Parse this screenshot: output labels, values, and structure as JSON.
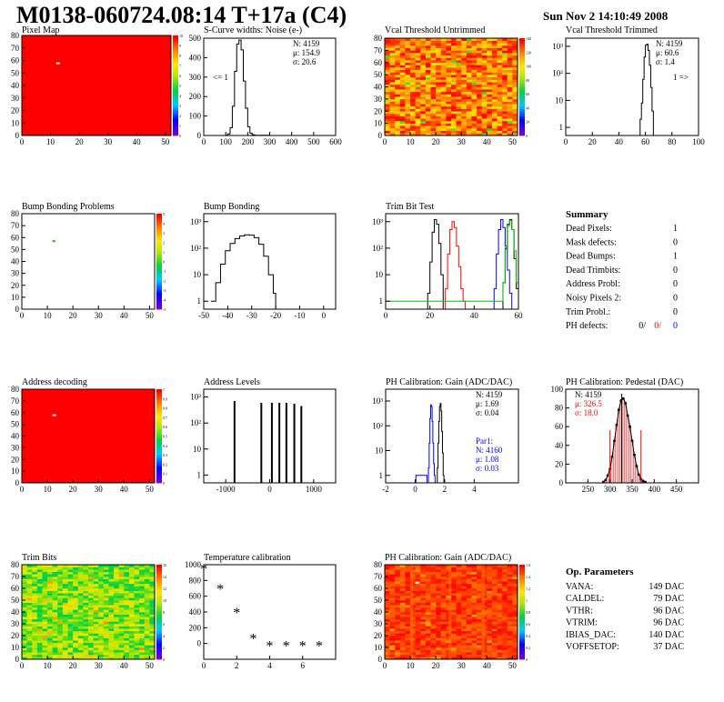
{
  "header": {
    "title": "M0138-060724.08:14 T+17a (C4)",
    "timestamp": "Sun Nov  2 14:10:49 2008"
  },
  "colors": {
    "red": "#ff0000",
    "blue": "#0000ff",
    "green": "#00c000",
    "black": "#000000"
  },
  "chart_data": [
    {
      "id": "pixel-map",
      "type": "heatmap",
      "title": "Pixel Map",
      "xlim": [
        0,
        52
      ],
      "ylim": [
        0,
        80
      ],
      "xticks": [
        0,
        10,
        20,
        30,
        40,
        50
      ],
      "yticks": [
        0,
        10,
        20,
        30,
        40,
        50,
        60,
        70,
        80
      ],
      "zlim": [
        0,
        10
      ],
      "zticks": [
        "0",
        "1",
        "2",
        "3",
        "4",
        "5",
        "6",
        "7",
        "8",
        "9",
        "10"
      ],
      "fill": "uniform",
      "value": 10,
      "hot_pixels": [
        [
          12,
          57
        ]
      ]
    },
    {
      "id": "scurve-widths",
      "type": "line",
      "title": "S-Curve widths: Noise (e-)",
      "xlim": [
        0,
        600
      ],
      "ylim": [
        0,
        500
      ],
      "xticks": [
        0,
        100,
        200,
        300,
        400,
        500,
        600
      ],
      "yticks": [
        0,
        100,
        200,
        300,
        400,
        500
      ],
      "stats": [
        "N: 4159",
        "μ: 154.9",
        "σ: 20.6"
      ],
      "note": "<= 1",
      "series": [
        {
          "color": "#000000",
          "x": [
            90,
            100,
            110,
            120,
            130,
            140,
            150,
            160,
            170,
            180,
            190,
            200,
            210,
            220,
            230,
            240,
            250,
            300
          ],
          "y": [
            0,
            2,
            8,
            40,
            150,
            330,
            470,
            490,
            440,
            280,
            140,
            45,
            12,
            4,
            2,
            0,
            1,
            0
          ]
        }
      ]
    },
    {
      "id": "vcal-untrimmed",
      "type": "heatmap",
      "title": "Vcal Threshold Untrimmed",
      "xlim": [
        0,
        52
      ],
      "ylim": [
        0,
        80
      ],
      "xticks": [
        0,
        10,
        20,
        30,
        40,
        50
      ],
      "yticks": [
        0,
        10,
        20,
        30,
        40,
        50,
        60,
        70,
        80
      ],
      "zlim": [
        0,
        140
      ],
      "zticks": [
        "0",
        "20",
        "40",
        "60",
        "80",
        "100",
        "120",
        "140"
      ],
      "fill": "noisy-warm"
    },
    {
      "id": "vcal-trimmed",
      "type": "line",
      "title": "Vcal Threshold Trimmed",
      "xlim": [
        0,
        100
      ],
      "ylim": [
        0.5,
        2000
      ],
      "ylog": true,
      "xticks": [
        0,
        20,
        40,
        60,
        80,
        100
      ],
      "ytick_labels": [
        "1",
        "10",
        "10²",
        "10³"
      ],
      "yticks": [
        1,
        10,
        100,
        1000
      ],
      "stats": [
        "N: 4159",
        "μ: 60.6",
        "σ: 1.4"
      ],
      "note": "1 =>",
      "series": [
        {
          "color": "#000000",
          "x": [
            55,
            56,
            57,
            58,
            59,
            60,
            61,
            62,
            63,
            64,
            65,
            66
          ],
          "y": [
            0.5,
            2,
            8,
            60,
            400,
            1100,
            1200,
            700,
            200,
            30,
            4,
            0.5
          ]
        }
      ]
    },
    {
      "id": "bump-bonding-problems",
      "type": "heatmap",
      "title": "Bump Bonding Problems",
      "xlim": [
        0,
        52
      ],
      "ylim": [
        0,
        80
      ],
      "xticks": [
        0,
        10,
        20,
        30,
        40,
        50
      ],
      "yticks": [
        0,
        10,
        20,
        30,
        40,
        50,
        60,
        70,
        80
      ],
      "zlim": [
        -5,
        5
      ],
      "zticks": [
        "-5",
        "-4",
        "-3",
        "-2",
        "-1",
        "0",
        "1",
        "2",
        "3",
        "4",
        "5"
      ],
      "fill": "empty",
      "marks": [
        [
          12,
          57
        ]
      ]
    },
    {
      "id": "bump-bonding",
      "type": "line",
      "title": "Bump Bonding",
      "xlim": [
        -50,
        5
      ],
      "ylim": [
        0.5,
        2000
      ],
      "ylog": true,
      "xticks": [
        -50,
        -40,
        -30,
        -20,
        -10,
        0
      ],
      "ytick_labels": [
        "1",
        "10",
        "10²",
        "10³"
      ],
      "yticks": [
        1,
        10,
        100,
        1000
      ],
      "series": [
        {
          "color": "#000000",
          "x": [
            -47,
            -45,
            -43,
            -41,
            -39,
            -37,
            -35,
            -33,
            -31,
            -29,
            -27,
            -25,
            -23,
            -21,
            -20
          ],
          "y": [
            1,
            5,
            25,
            80,
            150,
            230,
            290,
            320,
            310,
            250,
            140,
            50,
            10,
            2,
            0.5
          ]
        }
      ]
    },
    {
      "id": "trim-bit-test",
      "type": "line",
      "title": "Trim Bit Test",
      "xlim": [
        0,
        60
      ],
      "ylim": [
        0.5,
        2000
      ],
      "ylog": true,
      "xticks": [
        0,
        20,
        40,
        60
      ],
      "ytick_labels": [
        "1",
        "10",
        "10²",
        "10³"
      ],
      "yticks": [
        1,
        10,
        100,
        1000
      ],
      "series": [
        {
          "color": "#000000",
          "x": [
            18,
            19,
            20,
            21,
            22,
            23,
            24,
            25,
            26,
            52,
            53,
            54,
            55,
            56,
            57,
            58,
            59,
            60
          ],
          "y": [
            0.5,
            2,
            30,
            400,
            1200,
            800,
            150,
            10,
            0.5,
            0.5,
            5,
            100,
            800,
            1200,
            500,
            40,
            3,
            0.5
          ]
        },
        {
          "color": "#ff0000",
          "x": [
            26,
            27,
            28,
            29,
            30,
            31,
            32,
            33,
            34,
            35,
            36
          ],
          "y": [
            0.5,
            3,
            60,
            500,
            1000,
            600,
            120,
            20,
            3,
            1,
            0.5
          ]
        },
        {
          "color": "#0000ff",
          "x": [
            48,
            49,
            50,
            51,
            52,
            53,
            54,
            55,
            56,
            57
          ],
          "y": [
            0.5,
            3,
            60,
            500,
            1200,
            600,
            120,
            15,
            2,
            0.5
          ]
        },
        {
          "color": "#00c000",
          "x": [
            0,
            48,
            50,
            52,
            53,
            54,
            55,
            56,
            57,
            58,
            59,
            60
          ],
          "y": [
            1,
            1,
            1,
            1,
            5,
            90,
            700,
            1100,
            500,
            80,
            5,
            1
          ]
        }
      ]
    },
    {
      "id": "summary",
      "type": "table",
      "title": "Summary",
      "rows": [
        {
          "label": "Dead Pixels:",
          "value": "1"
        },
        {
          "label": "Mask defects:",
          "value": "0"
        },
        {
          "label": "Dead Bumps:",
          "value": "1"
        },
        {
          "label": "Dead Trimbits:",
          "value": "0"
        },
        {
          "label": "Address Probl:",
          "value": "0"
        },
        {
          "label": "Noisy Pixels 2:",
          "value": "0"
        },
        {
          "label": "Trim Probl.:",
          "value": "0"
        }
      ],
      "ph_defects": {
        "label": "PH defects:",
        "values": [
          {
            "text": "0/",
            "color": "#000000"
          },
          {
            "text": "0/",
            "color": "#ff0000"
          },
          {
            "text": "0",
            "color": "#0000ff"
          }
        ]
      }
    },
    {
      "id": "address-decoding",
      "type": "heatmap",
      "title": "Address decoding",
      "xlim": [
        0,
        52
      ],
      "ylim": [
        0,
        80
      ],
      "xticks": [
        0,
        10,
        20,
        30,
        40,
        50
      ],
      "yticks": [
        0,
        10,
        20,
        30,
        40,
        50,
        60,
        70,
        80
      ],
      "zlim": [
        0,
        1
      ],
      "zticks": [
        "0",
        "0.1",
        "0.2",
        "0.3",
        "0.4",
        "0.5",
        "0.6",
        "0.7",
        "0.8",
        "0.9",
        "1"
      ],
      "fill": "uniform",
      "value": 1,
      "hot_pixels": [
        [
          12,
          57
        ]
      ]
    },
    {
      "id": "address-levels",
      "type": "bar",
      "title": "Address Levels",
      "xlim": [
        -1500,
        1500
      ],
      "ylim": [
        0.5,
        2000
      ],
      "ylog": true,
      "xticks": [
        -1000,
        0,
        1000
      ],
      "ytick_labels": [
        "1",
        "10",
        "10²",
        "10³"
      ],
      "yticks": [
        1,
        10,
        100,
        1000
      ],
      "x": [
        -800,
        -190,
        50,
        220,
        380,
        560,
        720
      ],
      "values": [
        700,
        600,
        600,
        600,
        600,
        550,
        450
      ]
    },
    {
      "id": "ph-gain",
      "type": "line",
      "title": "PH Calibration: Gain (ADC/DAC)",
      "xlim": [
        -2,
        7
      ],
      "ylim": [
        0.5,
        3000
      ],
      "ylog": true,
      "xticks": [
        -2,
        0,
        2,
        4
      ],
      "ytick_labels": [
        "1",
        "10",
        "10²",
        "10³"
      ],
      "yticks": [
        1,
        10,
        100,
        1000
      ],
      "stats": [
        "N: 4159",
        "μ: 1.69",
        "σ: 0.04"
      ],
      "stats2": [
        "Par1:",
        "N: 4160",
        "μ: 1.08",
        "σ: 0.03"
      ],
      "series": [
        {
          "color": "#000000",
          "x": [
            1.45,
            1.5,
            1.55,
            1.6,
            1.65,
            1.7,
            1.75,
            1.8,
            1.85,
            1.9,
            1.95
          ],
          "y": [
            0.5,
            2,
            20,
            150,
            600,
            800,
            400,
            60,
            8,
            1,
            0.5
          ]
        },
        {
          "color": "#0000ff",
          "x": [
            0,
            0.05,
            0.8,
            0.9,
            0.95,
            1.0,
            1.05,
            1.1,
            1.15,
            1.2,
            1.25,
            1.3,
            1.35
          ],
          "y": [
            0.5,
            1,
            0.5,
            2,
            20,
            200,
            700,
            600,
            150,
            20,
            3,
            1,
            0.5
          ]
        },
        {
          "color": "#0000ff",
          "x": [
            -2,
            7
          ],
          "y": [
            0.5,
            0.5
          ]
        }
      ]
    },
    {
      "id": "ph-pedestal",
      "type": "bar",
      "title": "PH Calibration: Pedestal (DAC)",
      "xlim": [
        200,
        500
      ],
      "ylim": [
        0,
        100
      ],
      "xticks": [
        250,
        300,
        350,
        400,
        450
      ],
      "yticks": [
        0,
        20,
        40,
        60,
        80,
        100
      ],
      "stats": [
        "N: 4159"
      ],
      "stats_red": [
        "μ: 326.5",
        "σ: 18.0"
      ],
      "x": [
        285,
        290,
        295,
        300,
        305,
        310,
        315,
        320,
        325,
        330,
        335,
        340,
        345,
        350,
        355,
        360,
        365,
        370,
        375,
        380
      ],
      "values": [
        1,
        3,
        8,
        15,
        28,
        45,
        62,
        78,
        88,
        90,
        85,
        72,
        60,
        45,
        30,
        18,
        9,
        4,
        2,
        1
      ],
      "markers": [
        300,
        326.5,
        370
      ]
    },
    {
      "id": "trim-bits",
      "type": "heatmap",
      "title": "Trim Bits",
      "xlim": [
        0,
        52
      ],
      "ylim": [
        0,
        80
      ],
      "xticks": [
        0,
        10,
        20,
        30,
        40,
        50
      ],
      "yticks": [
        0,
        10,
        20,
        30,
        40,
        50,
        60,
        70,
        80
      ],
      "zlim": [
        0,
        16
      ],
      "zticks": [
        "0",
        "2",
        "4",
        "6",
        "8",
        "10",
        "12",
        "14",
        "16"
      ],
      "fill": "noisy-green"
    },
    {
      "id": "temperature-calibration",
      "type": "scatter",
      "title": "Temperature calibration",
      "xlim": [
        0,
        8
      ],
      "ylim": [
        -200,
        1000
      ],
      "xticks": [
        0,
        2,
        4,
        6
      ],
      "yticks": [
        0,
        200,
        400,
        600,
        800,
        1000
      ],
      "series": [
        {
          "color": "#000000",
          "x": [
            0,
            1,
            2,
            3,
            4,
            5,
            6,
            7
          ],
          "y": [
            940,
            690,
            390,
            60,
            -30,
            -30,
            -30,
            -30
          ]
        }
      ]
    },
    {
      "id": "ph-gain-map",
      "type": "heatmap",
      "title": "PH Calibration: Gain (ADC/DAC)",
      "xlim": [
        0,
        52
      ],
      "ylim": [
        0,
        80
      ],
      "xticks": [
        0,
        10,
        20,
        30,
        40,
        50
      ],
      "yticks": [
        0,
        10,
        20,
        30,
        40,
        50,
        60,
        70,
        80
      ],
      "zlim": [
        0,
        1.6
      ],
      "zticks": [
        "0",
        "0.2",
        "0.4",
        "0.6",
        "0.8",
        "1",
        "1.2",
        "1.4",
        "1.6"
      ],
      "fill": "noisy-red",
      "hot_pixels": [
        [
          12,
          64
        ]
      ]
    },
    {
      "id": "op-parameters",
      "type": "table",
      "title": "Op. Parameters",
      "rows": [
        {
          "label": "VANA:",
          "value": "149 DAC"
        },
        {
          "label": "CALDEL:",
          "value": "79 DAC"
        },
        {
          "label": "VTHR:",
          "value": "96 DAC"
        },
        {
          "label": "VTRIM:",
          "value": "96 DAC"
        },
        {
          "label": "IBIAS_DAC:",
          "value": "140 DAC"
        },
        {
          "label": "VOFFSETOP:",
          "value": "37 DAC"
        }
      ]
    }
  ]
}
